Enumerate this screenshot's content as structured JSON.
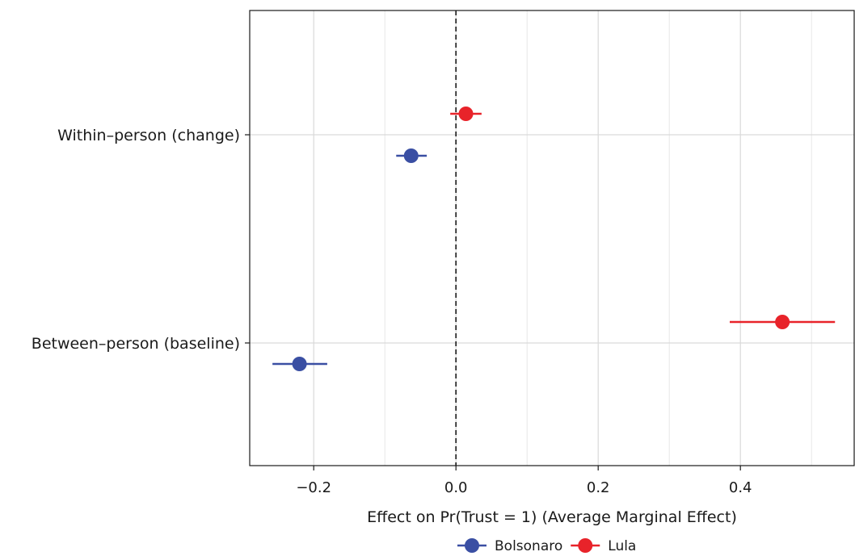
{
  "chart_data": {
    "type": "scatter",
    "subtype": "coefficient-plot",
    "title": "",
    "xlabel": "Effect on Pr(Trust = 1) (Average Marginal Effect)",
    "ylabel": "",
    "xlim": [
      -0.29,
      0.56
    ],
    "xticks": [
      -0.2,
      0.0,
      0.2,
      0.4
    ],
    "xtick_labels": [
      "−0.2",
      "0.0",
      "0.2",
      "0.4"
    ],
    "categories": [
      "Within–person (change)",
      "Between–person (baseline)"
    ],
    "reference_line": {
      "x": 0,
      "style": "dashed"
    },
    "grid": true,
    "legend": {
      "position": "bottom",
      "orientation": "horizontal"
    },
    "series": [
      {
        "name": "Bolsonaro",
        "color": "#3a4fa3",
        "points": [
          {
            "category": "Within–person (change)",
            "estimate": -0.063,
            "ci_low": -0.084,
            "ci_high": -0.041
          },
          {
            "category": "Between–person (baseline)",
            "estimate": -0.22,
            "ci_low": -0.258,
            "ci_high": -0.181
          }
        ]
      },
      {
        "name": "Lula",
        "color": "#e8232a",
        "points": [
          {
            "category": "Within–person (change)",
            "estimate": 0.014,
            "ci_low": -0.008,
            "ci_high": 0.036
          },
          {
            "category": "Between–person (baseline)",
            "estimate": 0.459,
            "ci_low": 0.385,
            "ci_high": 0.533
          }
        ]
      }
    ]
  }
}
